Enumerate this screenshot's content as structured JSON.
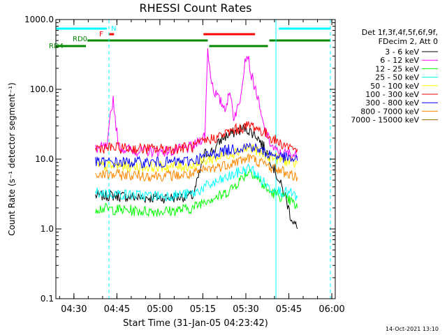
{
  "chart_data": {
    "type": "line",
    "title": "RHESSI Count Rates",
    "xlabel": "Start Time (31-Jan-05 04:23:42)",
    "ylabel": "Count Rate (s⁻¹ detector segment⁻¹)",
    "yscale": "log",
    "x_units": "minutes after 04:23:42",
    "xlim": [
      0,
      97.5
    ],
    "ylim": [
      0.1,
      1000
    ],
    "x_ticks": [
      {
        "value": 6.3,
        "label": "04:30"
      },
      {
        "value": 21.3,
        "label": "04:45"
      },
      {
        "value": 36.3,
        "label": "05:00"
      },
      {
        "value": 51.3,
        "label": "05:15"
      },
      {
        "value": 66.3,
        "label": "05:30"
      },
      {
        "value": 81.3,
        "label": "05:45"
      },
      {
        "value": 96.3,
        "label": "06:00"
      }
    ],
    "y_ticks": [
      {
        "value": 1000,
        "label": "1000.0"
      },
      {
        "value": 100,
        "label": "100.0"
      },
      {
        "value": 10,
        "label": "10.0"
      },
      {
        "value": 1,
        "label": "1.0"
      },
      {
        "value": 0.1,
        "label": "0.1"
      }
    ],
    "legend_header": [
      "Det 1f,3f,4f,5f,6f,9f,",
      "FDecim 2, Att 0"
    ],
    "legend_placement": "top-right, outside plot",
    "series": [
      {
        "name": "3 - 6 keV",
        "color": "#000000",
        "x": [
          13.8,
          20,
          30,
          40,
          48,
          52,
          55,
          58,
          63,
          66,
          70,
          74,
          77,
          80,
          82,
          84.3
        ],
        "values": [
          3.0,
          3.0,
          2.8,
          2.8,
          3.0,
          12,
          13,
          20,
          25,
          28,
          22,
          12,
          6,
          3,
          1.5,
          1.0
        ]
      },
      {
        "name": "6 - 12 keV",
        "color": "#ff00ff",
        "x": [
          13.8,
          18,
          19,
          20,
          21,
          22,
          24,
          30,
          40,
          48,
          52,
          53,
          54,
          55,
          57,
          59,
          61,
          62,
          64,
          66,
          67,
          68,
          70,
          72,
          74,
          76,
          78,
          80,
          82,
          84.3
        ],
        "values": [
          14,
          15,
          40,
          75,
          30,
          15,
          14,
          13,
          13,
          15,
          22,
          380,
          160,
          100,
          70,
          55,
          90,
          40,
          60,
          270,
          320,
          170,
          90,
          35,
          20,
          14,
          12,
          12,
          12,
          11
        ]
      },
      {
        "name": "12 - 25 keV",
        "color": "#00ff00",
        "x": [
          13.8,
          20,
          30,
          40,
          48,
          52,
          58,
          62,
          66,
          68,
          70,
          74,
          78,
          82,
          84.3
        ],
        "values": [
          2.0,
          1.9,
          1.8,
          1.8,
          2.0,
          2.6,
          3.0,
          4.0,
          6.0,
          7.0,
          5.5,
          3.5,
          3.0,
          2.5,
          2.0
        ]
      },
      {
        "name": "25 - 50 keV",
        "color": "#00ffff",
        "x": [
          13.8,
          20,
          30,
          40,
          48,
          52,
          58,
          62,
          66,
          68,
          70,
          74,
          78,
          82,
          84.3
        ],
        "values": [
          3.3,
          3.2,
          3.0,
          3.0,
          3.2,
          4.0,
          5.0,
          6.0,
          7.0,
          7.5,
          6.0,
          4.0,
          3.5,
          3.2,
          2.8
        ]
      },
      {
        "name": "50 - 100 keV",
        "color": "#ffff00",
        "x": [
          13.8,
          20,
          30,
          40,
          48,
          52,
          58,
          62,
          66,
          68,
          70,
          74,
          78,
          82,
          84.3
        ],
        "values": [
          8.0,
          8.0,
          7.8,
          7.8,
          8.0,
          9.5,
          11,
          12.5,
          14,
          15,
          13,
          11,
          10,
          9,
          8.5
        ]
      },
      {
        "name": "100 - 300 keV",
        "color": "#ff0000",
        "x": [
          13.8,
          20,
          30,
          40,
          48,
          52,
          58,
          62,
          66,
          68,
          70,
          74,
          78,
          82,
          84.3
        ],
        "values": [
          14.5,
          14.5,
          14,
          14,
          15,
          18,
          22,
          26,
          29,
          31,
          28,
          22,
          17,
          15,
          14
        ]
      },
      {
        "name": "300 - 800 keV",
        "color": "#0000ff",
        "x": [
          13.8,
          20,
          30,
          40,
          48,
          52,
          58,
          62,
          66,
          68,
          70,
          74,
          78,
          82,
          84.3
        ],
        "values": [
          9.0,
          9.0,
          9.0,
          9.0,
          9.5,
          11,
          13,
          14,
          15,
          15.5,
          14,
          12,
          11,
          10,
          9.5
        ]
      },
      {
        "name": "800 - 7000 keV",
        "color": "#ff8800",
        "x": [
          13.8,
          20,
          30,
          40,
          48,
          52,
          58,
          62,
          66,
          68,
          70,
          74,
          78,
          82,
          84.3
        ],
        "values": [
          6.0,
          6.0,
          5.8,
          5.8,
          6.0,
          7.0,
          8.0,
          9.0,
          10,
          10.5,
          9.5,
          8.0,
          7.0,
          6.0,
          5.5
        ]
      },
      {
        "name": "7000 - 15000 keV",
        "color": "#996600",
        "x": [],
        "values": []
      }
    ],
    "attenuator_state_bars": [
      {
        "color": "#00ffff",
        "segments": [
          [
            0,
            17.8
          ],
          [
            77.8,
            95.8
          ]
        ]
      },
      {
        "color": "#ff0000",
        "segments": [
          [
            18.5,
            20.3
          ],
          [
            51.5,
            69.5
          ]
        ]
      },
      {
        "color": "#008800",
        "segments": [
          [
            0,
            10.5
          ],
          [
            11,
            53
          ],
          [
            53.5,
            74
          ],
          [
            74.5,
            95.8
          ]
        ]
      }
    ],
    "annotations": [
      "N",
      "F",
      "RD0",
      "RD4"
    ],
    "vertical_lines": [
      {
        "x": 18.5,
        "style": "dashed",
        "color": "#00ffff"
      },
      {
        "x": 76.8,
        "style": "solid",
        "color": "#00ffff"
      },
      {
        "x": 95.8,
        "style": "dashed",
        "color": "#00ffff"
      }
    ],
    "grid": false,
    "footer": "14-Oct-2021 13:10"
  }
}
